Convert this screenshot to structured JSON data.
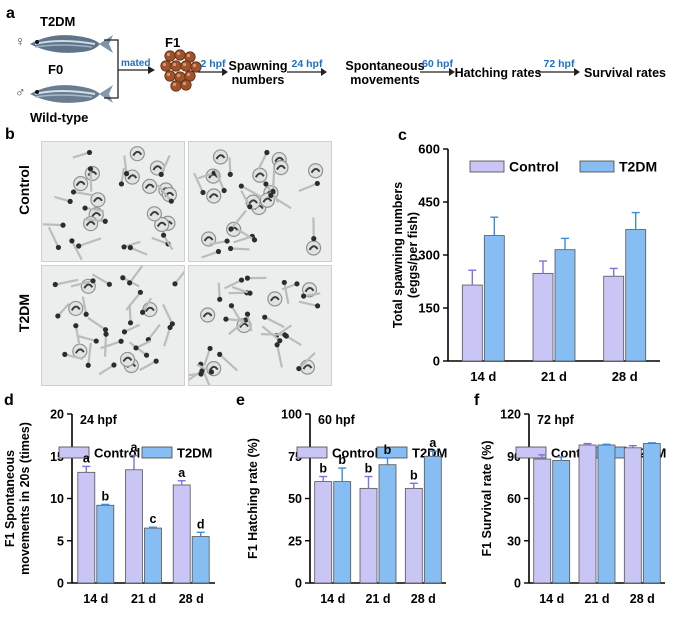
{
  "colors": {
    "control": "#c9c5f4",
    "t2dm": "#86bdf2",
    "err_control": "#7d72e2",
    "err_t2dm": "#3a8de0",
    "step_label": "#1f6fc8",
    "eggs": "#a0522d"
  },
  "schematic": {
    "panel_label": "a",
    "female_symbol": "♀",
    "male_symbol": "♂",
    "t2dm_label": "T2DM",
    "f0_label": "F0",
    "wildtype_label": "Wild-type",
    "mated_label": "mated",
    "f1_label": "F1",
    "steps": [
      {
        "label": "2 hpf",
        "text": [
          "Spawning",
          "numbers"
        ]
      },
      {
        "label": "24 hpf",
        "text": [
          "Spontaneous",
          "movements"
        ]
      },
      {
        "label": "60 hpf",
        "text": [
          "Hatching rates"
        ]
      },
      {
        "label": "72 hpf",
        "text": [
          "Survival rates"
        ]
      }
    ]
  },
  "photos": {
    "panel_label": "b",
    "row_labels": [
      "Control",
      "T2DM"
    ]
  },
  "chart_data": [
    {
      "panel": "c",
      "type": "bar",
      "title": "",
      "categories": [
        "14 d",
        "21 d",
        "28 d"
      ],
      "series": [
        {
          "name": "Control",
          "values": [
            215,
            248,
            240
          ],
          "errors": [
            42,
            35,
            22
          ]
        },
        {
          "name": "T2DM",
          "values": [
            355,
            315,
            372
          ],
          "errors": [
            52,
            32,
            48
          ]
        }
      ],
      "ylabel": [
        "Total spawning numbers",
        "(eggs/per fish)"
      ],
      "ylim": [
        0,
        600
      ],
      "yticks": [
        0,
        150,
        300,
        450,
        600
      ],
      "legend": "top",
      "letters": []
    },
    {
      "panel": "d",
      "type": "bar",
      "title": "24 hpf",
      "categories": [
        "14 d",
        "21 d",
        "28 d"
      ],
      "series": [
        {
          "name": "Control",
          "values": [
            13.1,
            13.4,
            11.6
          ],
          "errors": [
            0.7,
            1.7,
            0.5
          ]
        },
        {
          "name": "T2DM",
          "values": [
            9.2,
            6.5,
            5.5
          ],
          "errors": [
            0.1,
            0.1,
            0.5
          ]
        }
      ],
      "ylabel": [
        "F1 Spontaneous",
        "movements in 20s (times)"
      ],
      "ylim": [
        0,
        20
      ],
      "yticks": [
        0,
        5,
        10,
        15,
        20
      ],
      "legend": "top",
      "letters": [
        [
          "a",
          "b"
        ],
        [
          "a",
          "c"
        ],
        [
          "a",
          "d"
        ]
      ]
    },
    {
      "panel": "e",
      "type": "bar",
      "title": "60 hpf",
      "categories": [
        "14 d",
        "21 d",
        "28 d"
      ],
      "series": [
        {
          "name": "Control",
          "values": [
            60,
            56,
            56
          ],
          "errors": [
            3,
            7,
            3
          ]
        },
        {
          "name": "T2DM",
          "values": [
            60,
            70,
            75
          ],
          "errors": [
            8,
            4,
            3
          ]
        }
      ],
      "ylabel": [
        "F1 Hatching rate (%)"
      ],
      "ylim": [
        0,
        100
      ],
      "yticks": [
        0,
        25,
        50,
        75,
        100
      ],
      "legend": "top",
      "letters": [
        [
          "b",
          "b"
        ],
        [
          "b",
          "b"
        ],
        [
          "b",
          "a"
        ]
      ]
    },
    {
      "panel": "f",
      "type": "bar",
      "title": "72 hpf",
      "categories": [
        "14 d",
        "21 d",
        "28 d"
      ],
      "series": [
        {
          "name": "Control",
          "values": [
            88,
            98,
            96
          ],
          "errors": [
            3,
            1,
            1.5
          ]
        },
        {
          "name": "T2DM",
          "values": [
            87,
            98,
            99
          ],
          "errors": [
            2.5,
            0.5,
            0.5
          ]
        }
      ],
      "ylabel": [
        "F1 Survival rate (%)"
      ],
      "ylim": [
        0,
        120
      ],
      "yticks": [
        0,
        30,
        60,
        90,
        120
      ],
      "legend": "top",
      "letters": []
    }
  ]
}
